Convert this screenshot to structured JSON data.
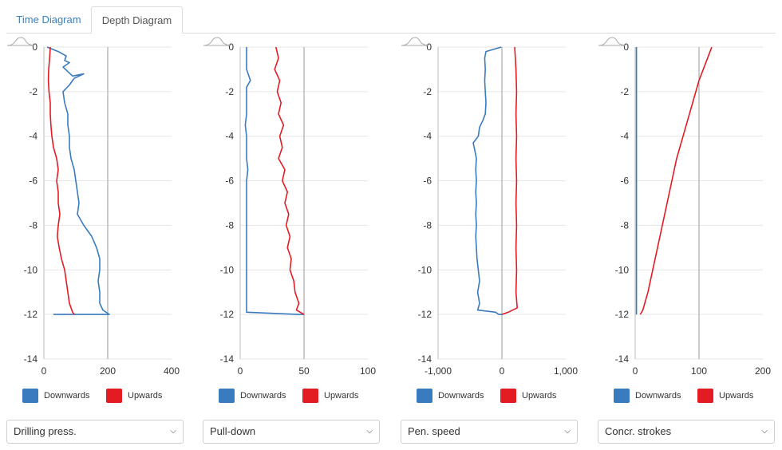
{
  "tabs": [
    {
      "label": "Time Diagram",
      "active": false
    },
    {
      "label": "Depth Diagram",
      "active": true
    }
  ],
  "colors": {
    "downwards": "#3a7bbf",
    "upwards": "#e31b23",
    "grid": "#e6e6e6"
  },
  "legend": {
    "downwards": "Downwards",
    "upwards": "Upwards"
  },
  "chart_data": [
    {
      "type": "line",
      "selector_label": "Drilling press.",
      "ylim": [
        -14,
        0
      ],
      "yticks": [
        0,
        -2,
        -4,
        -6,
        -8,
        -10,
        -12,
        -14
      ],
      "xlim": [
        0,
        400
      ],
      "xticks": [
        0,
        200,
        400
      ],
      "xtick_labels": [
        "0",
        "200",
        "400"
      ],
      "vline": 200,
      "grid": true,
      "series": [
        {
          "name": "Downwards",
          "points": [
            [
              10,
              0
            ],
            [
              45,
              -0.2
            ],
            [
              70,
              -0.4
            ],
            [
              65,
              -0.6
            ],
            [
              80,
              -0.7
            ],
            [
              60,
              -0.9
            ],
            [
              75,
              -1.1
            ],
            [
              90,
              -1.3
            ],
            [
              125,
              -1.2
            ],
            [
              95,
              -1.4
            ],
            [
              80,
              -1.7
            ],
            [
              60,
              -2.0
            ],
            [
              65,
              -2.5
            ],
            [
              75,
              -3
            ],
            [
              75,
              -3.5
            ],
            [
              80,
              -4
            ],
            [
              80,
              -4.5
            ],
            [
              85,
              -5
            ],
            [
              95,
              -5.5
            ],
            [
              100,
              -6
            ],
            [
              105,
              -6.5
            ],
            [
              110,
              -7
            ],
            [
              105,
              -7.5
            ],
            [
              125,
              -8
            ],
            [
              150,
              -8.5
            ],
            [
              165,
              -9
            ],
            [
              175,
              -9.5
            ],
            [
              175,
              -10
            ],
            [
              170,
              -10.5
            ],
            [
              175,
              -11
            ],
            [
              175,
              -11.5
            ],
            [
              185,
              -11.8
            ],
            [
              205,
              -12.0
            ],
            [
              175,
              -12.0
            ],
            [
              30,
              -12.0
            ]
          ]
        },
        {
          "name": "Upwards",
          "points": [
            [
              20,
              0
            ],
            [
              18,
              -0.5
            ],
            [
              15,
              -1
            ],
            [
              14,
              -1.5
            ],
            [
              16,
              -2
            ],
            [
              20,
              -2.5
            ],
            [
              20,
              -3
            ],
            [
              22,
              -3.5
            ],
            [
              25,
              -4
            ],
            [
              30,
              -4.5
            ],
            [
              40,
              -5
            ],
            [
              45,
              -5.5
            ],
            [
              40,
              -6
            ],
            [
              45,
              -6.5
            ],
            [
              45,
              -7
            ],
            [
              50,
              -7.5
            ],
            [
              45,
              -8
            ],
            [
              42,
              -8.5
            ],
            [
              48,
              -9
            ],
            [
              55,
              -9.5
            ],
            [
              65,
              -10
            ],
            [
              70,
              -10.5
            ],
            [
              75,
              -11
            ],
            [
              80,
              -11.5
            ],
            [
              90,
              -11.9
            ],
            [
              95,
              -12.0
            ]
          ]
        }
      ]
    },
    {
      "type": "line",
      "selector_label": "Pull-down",
      "ylim": [
        -14,
        0
      ],
      "yticks": [
        0,
        -2,
        -4,
        -6,
        -8,
        -10,
        -12,
        -14
      ],
      "xlim": [
        0,
        100
      ],
      "xticks": [
        0,
        50,
        100
      ],
      "xtick_labels": [
        "0",
        "50",
        "100"
      ],
      "vline": 50,
      "grid": true,
      "series": [
        {
          "name": "Downwards",
          "points": [
            [
              5,
              0
            ],
            [
              5,
              -0.5
            ],
            [
              5,
              -1
            ],
            [
              8,
              -1.5
            ],
            [
              5,
              -1.8
            ],
            [
              5,
              -2.5
            ],
            [
              5,
              -3
            ],
            [
              4,
              -3.5
            ],
            [
              5,
              -4
            ],
            [
              5,
              -5
            ],
            [
              6,
              -5.5
            ],
            [
              5,
              -6
            ],
            [
              5,
              -7
            ],
            [
              5,
              -8
            ],
            [
              5,
              -9
            ],
            [
              5,
              -10
            ],
            [
              5,
              -11
            ],
            [
              5,
              -11.9
            ],
            [
              45,
              -12.0
            ],
            [
              50,
              -12.0
            ]
          ]
        },
        {
          "name": "Upwards",
          "points": [
            [
              28,
              0
            ],
            [
              30,
              -0.5
            ],
            [
              27,
              -1
            ],
            [
              31,
              -1.5
            ],
            [
              29,
              -2
            ],
            [
              32,
              -2.5
            ],
            [
              30,
              -3
            ],
            [
              34,
              -3.5
            ],
            [
              31,
              -4
            ],
            [
              33,
              -4.5
            ],
            [
              30,
              -5
            ],
            [
              35,
              -5.5
            ],
            [
              33,
              -6
            ],
            [
              37,
              -6.5
            ],
            [
              35,
              -7
            ],
            [
              38,
              -7.5
            ],
            [
              36,
              -8
            ],
            [
              39,
              -8.5
            ],
            [
              37,
              -9
            ],
            [
              40,
              -9.5
            ],
            [
              39,
              -10
            ],
            [
              42,
              -10.5
            ],
            [
              43,
              -11
            ],
            [
              46,
              -11.5
            ],
            [
              44,
              -11.8
            ],
            [
              50,
              -12.0
            ]
          ]
        }
      ]
    },
    {
      "type": "line",
      "selector_label": "Pen. speed",
      "ylim": [
        -14,
        0
      ],
      "yticks": [
        0,
        -2,
        -4,
        -6,
        -8,
        -10,
        -12,
        -14
      ],
      "xlim": [
        -1000,
        1000
      ],
      "xticks": [
        -1000,
        0,
        1000
      ],
      "xtick_labels": [
        "-1,000",
        "0",
        "1,000"
      ],
      "vline": 0,
      "grid": true,
      "series": [
        {
          "name": "Downwards",
          "points": [
            [
              -10,
              0
            ],
            [
              -250,
              -0.2
            ],
            [
              -270,
              -0.5
            ],
            [
              -260,
              -1
            ],
            [
              -270,
              -1.5
            ],
            [
              -260,
              -2
            ],
            [
              -250,
              -2.5
            ],
            [
              -260,
              -3
            ],
            [
              -300,
              -3.3
            ],
            [
              -350,
              -3.6
            ],
            [
              -370,
              -4
            ],
            [
              -450,
              -4.3
            ],
            [
              -420,
              -4.7
            ],
            [
              -400,
              -5
            ],
            [
              -410,
              -5.5
            ],
            [
              -400,
              -6
            ],
            [
              -410,
              -6.5
            ],
            [
              -400,
              -7
            ],
            [
              -410,
              -7.5
            ],
            [
              -400,
              -8
            ],
            [
              -410,
              -8.5
            ],
            [
              -400,
              -9
            ],
            [
              -390,
              -9.5
            ],
            [
              -370,
              -10
            ],
            [
              -350,
              -10.5
            ],
            [
              -380,
              -11
            ],
            [
              -350,
              -11.5
            ],
            [
              -380,
              -11.8
            ],
            [
              -100,
              -11.9
            ],
            [
              -50,
              -12.0
            ],
            [
              0,
              -12.0
            ]
          ]
        },
        {
          "name": "Upwards",
          "points": [
            [
              200,
              0
            ],
            [
              220,
              -1
            ],
            [
              230,
              -2
            ],
            [
              220,
              -3
            ],
            [
              230,
              -4
            ],
            [
              220,
              -5
            ],
            [
              230,
              -6
            ],
            [
              220,
              -7
            ],
            [
              230,
              -8
            ],
            [
              220,
              -9
            ],
            [
              230,
              -10
            ],
            [
              220,
              -11
            ],
            [
              240,
              -11.7
            ],
            [
              100,
              -11.9
            ],
            [
              0,
              -12.0
            ]
          ]
        }
      ]
    },
    {
      "type": "line",
      "selector_label": "Concr. strokes",
      "ylim": [
        -14,
        0
      ],
      "yticks": [
        0,
        -2,
        -4,
        -6,
        -8,
        -10,
        -12,
        -14
      ],
      "xlim": [
        0,
        200
      ],
      "xticks": [
        0,
        100,
        200
      ],
      "xtick_labels": [
        "0",
        "100",
        "200"
      ],
      "vline": 100,
      "grid": true,
      "series": [
        {
          "name": "Downwards",
          "points": [
            [
              2,
              0
            ],
            [
              2,
              -12.0
            ]
          ]
        },
        {
          "name": "Upwards",
          "points": [
            [
              120,
              0
            ],
            [
              100,
              -1.5
            ],
            [
              85,
              -3
            ],
            [
              65,
              -5
            ],
            [
              50,
              -7
            ],
            [
              35,
              -9
            ],
            [
              20,
              -11
            ],
            [
              12,
              -11.8
            ],
            [
              8,
              -12.0
            ]
          ]
        }
      ]
    }
  ]
}
